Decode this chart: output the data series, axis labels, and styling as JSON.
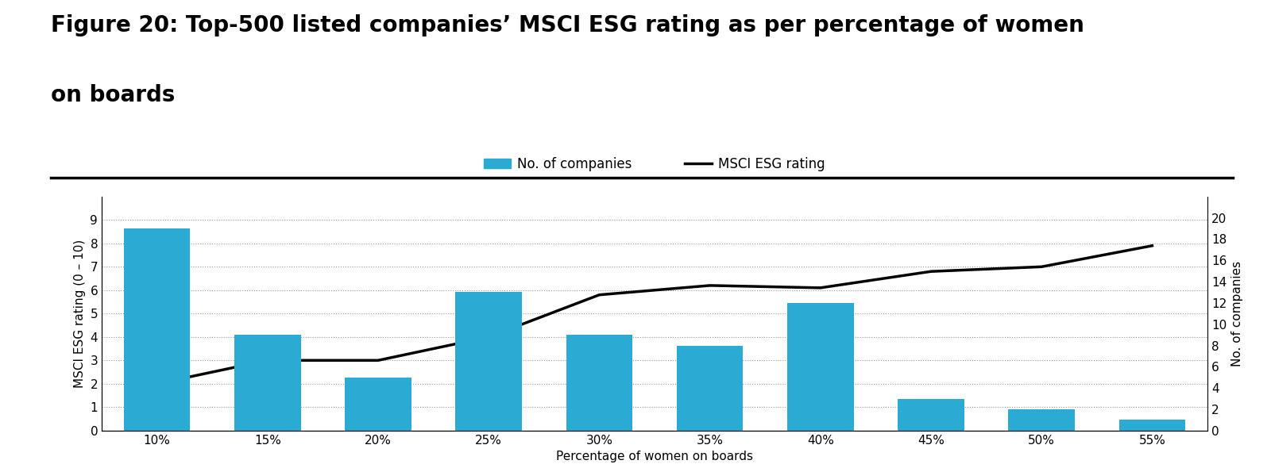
{
  "categories": [
    "10%",
    "15%",
    "20%",
    "25%",
    "30%",
    "35%",
    "40%",
    "45%",
    "50%",
    "55%"
  ],
  "bar_values": [
    19,
    9,
    5,
    13,
    9,
    8,
    12,
    3,
    2,
    1
  ],
  "line_values": [
    2.0,
    3.0,
    3.0,
    4.0,
    5.8,
    6.2,
    6.1,
    6.8,
    7.0,
    7.9
  ],
  "bar_color": "#29ABD4",
  "line_color": "#000000",
  "title_line1": "Figure 20: Top-500 listed companies’ MSCI ESG rating as per percentage of women",
  "title_line2": "on boards",
  "xlabel": "Percentage of women on boards",
  "ylabel_left": "MSCI ESG rating (0 – 10)",
  "ylabel_right": "No. of companies",
  "left_ylim": [
    0,
    10
  ],
  "right_ylim": [
    0,
    22
  ],
  "left_yticks": [
    0,
    1,
    2,
    3,
    4,
    5,
    6,
    7,
    8,
    9
  ],
  "right_yticks": [
    0,
    2,
    4,
    6,
    8,
    10,
    12,
    14,
    16,
    18,
    20
  ],
  "legend_bar_label": "No. of companies",
  "legend_line_label": "MSCI ESG rating",
  "title_fontsize": 20,
  "label_fontsize": 11,
  "tick_fontsize": 11,
  "legend_fontsize": 12,
  "background_color": "#ffffff",
  "grid_color": "#999999",
  "title_color": "#000000",
  "separator_color": "#000000",
  "bar_width": 0.6
}
